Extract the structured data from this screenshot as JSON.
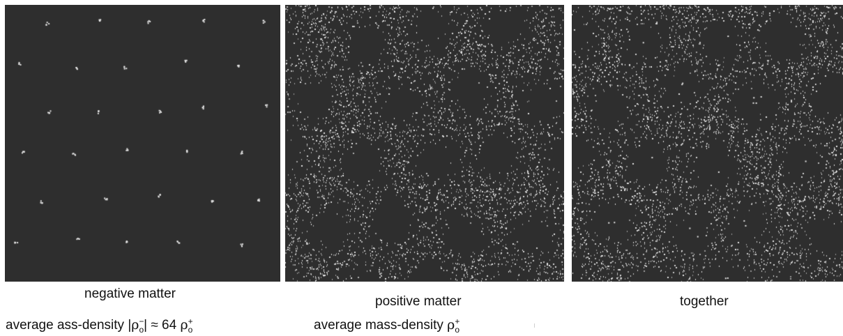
{
  "panels": [
    {
      "id": "negative",
      "caption": "negative matter",
      "pattern": "sparse-points"
    },
    {
      "id": "positive",
      "caption": "positive matter",
      "pattern": "cellular-dense"
    },
    {
      "id": "together",
      "caption": "together",
      "pattern": "cellular-dense-with-points"
    }
  ],
  "subcaptions": {
    "negative": {
      "prefix": "average ass-density |",
      "rho": "ρ",
      "sub": "o",
      "sup_neg": "−",
      "approx": "| ≈ 64 ",
      "sup_pos": "+"
    },
    "positive": {
      "prefix": "average mass-density  ",
      "rho": "ρ",
      "sub": "o",
      "sup_pos": "+"
    }
  },
  "colors": {
    "background": "#2e2e2e",
    "particle": "#e8e8e8"
  }
}
